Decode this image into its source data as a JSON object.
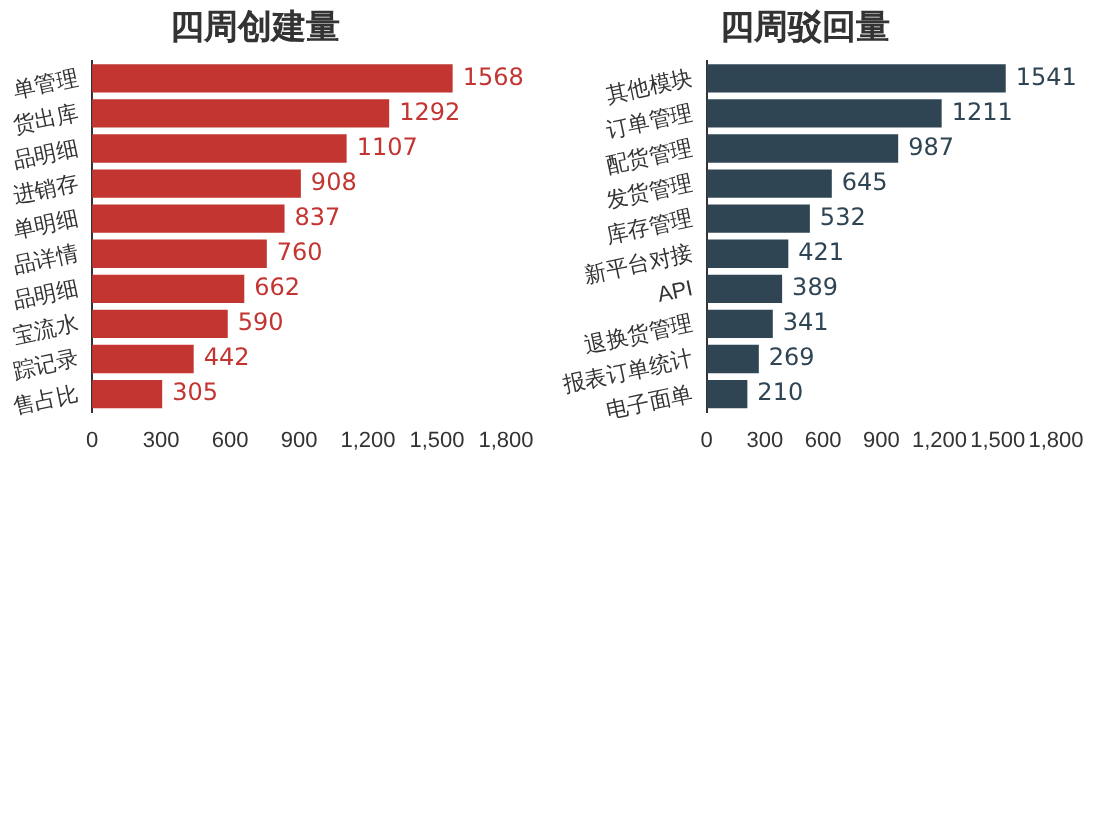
{
  "chart_data": [
    {
      "type": "bar",
      "orientation": "horizontal",
      "title": "四周创建量",
      "categories": [
        "单管理",
        "货出库",
        "品明细",
        "进销存",
        "单明细",
        "品详情",
        "品明细",
        "宝流水",
        "踪记录",
        "售占比"
      ],
      "series": [
        {
          "color": "#c23531",
          "values": [
            1568,
            1292,
            1107,
            908,
            837,
            760,
            662,
            590,
            442,
            305
          ]
        }
      ],
      "xlim": [
        0,
        1800
      ],
      "xticks": [
        0,
        {
          "value": 300,
          "label": "300"
        },
        {
          "value": 600,
          "label": "600"
        },
        {
          "value": 900,
          "label": "900"
        },
        {
          "value": 1200,
          "label": "1,200"
        },
        {
          "value": 1500,
          "label": "1,500"
        },
        {
          "value": 1800,
          "label": "1,800"
        }
      ],
      "grid": false,
      "legend": false,
      "data_labels": true
    },
    {
      "type": "bar",
      "orientation": "horizontal",
      "title": "四周驳回量",
      "categories": [
        "其他模块",
        "订单管理",
        "配货管理",
        "发货管理",
        "库存管理",
        "新平台对接",
        "API",
        "退换货管理",
        "报表订单统计",
        "电子面单"
      ],
      "series": [
        {
          "color": "#2f4554",
          "values": [
            1541,
            1211,
            987,
            645,
            532,
            421,
            389,
            341,
            269,
            210
          ]
        }
      ],
      "xlim": [
        0,
        1800
      ],
      "xticks": [
        0,
        {
          "value": 300,
          "label": "300"
        },
        {
          "value": 600,
          "label": "600"
        },
        {
          "value": 900,
          "label": "900"
        },
        {
          "value": 1200,
          "label": "1,200"
        },
        {
          "value": 1500,
          "label": "1,500"
        },
        {
          "value": 1800,
          "label": "1,800"
        }
      ],
      "grid": false,
      "legend": false,
      "data_labels": true
    }
  ]
}
